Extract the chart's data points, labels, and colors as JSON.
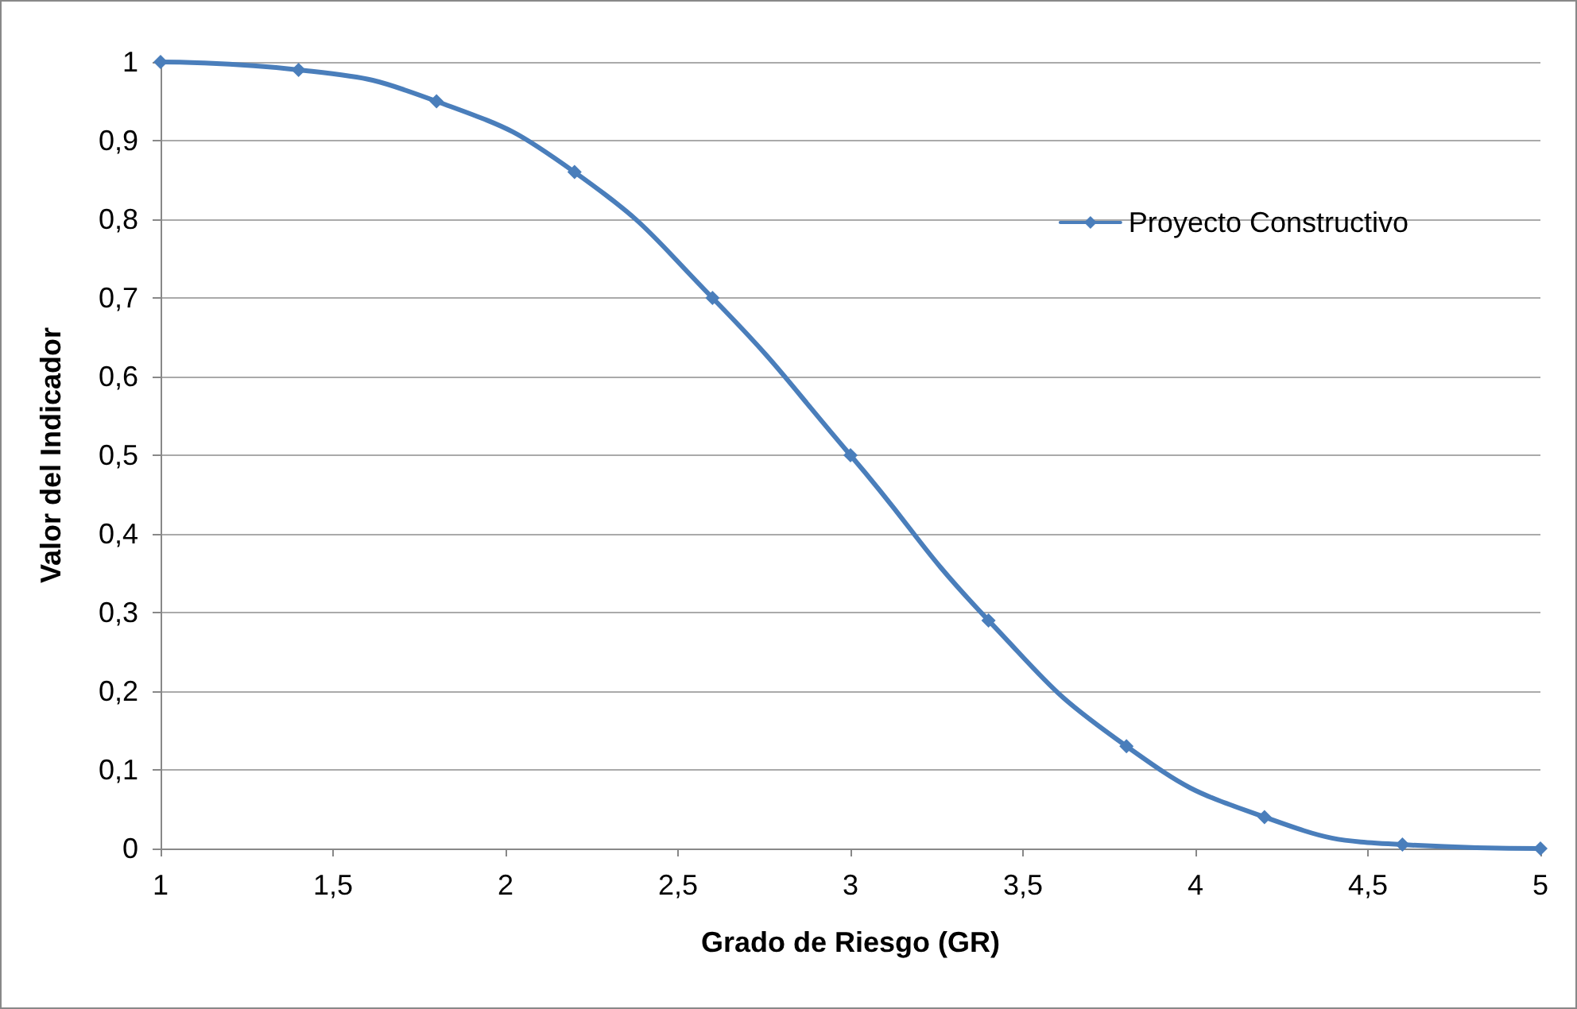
{
  "chart_data": {
    "type": "line",
    "xlabel": "Grado de Riesgo (GR)",
    "ylabel": "Valor del Indicador",
    "x": [
      1,
      1.4,
      1.8,
      2.2,
      2.6,
      3,
      3.4,
      3.8,
      4.2,
      4.6,
      5
    ],
    "series": [
      {
        "name": "Proyecto Constructivo",
        "color": "#4a7ebb",
        "values": [
          1,
          0.99,
          0.95,
          0.86,
          0.7,
          0.5,
          0.29,
          0.13,
          0.04,
          0.005,
          0
        ]
      }
    ],
    "xlim": [
      1,
      5
    ],
    "xticks": [
      1,
      {
        "value": 1.5,
        "label": "1,5"
      },
      2,
      {
        "value": 2.5,
        "label": "2,5"
      },
      3,
      {
        "value": 3.5,
        "label": "3,5"
      },
      4,
      {
        "value": 4.5,
        "label": "4,5"
      },
      5
    ],
    "ylim": [
      0,
      1
    ],
    "yticks": [
      0,
      {
        "value": 0.1,
        "label": "0,1"
      },
      {
        "value": 0.2,
        "label": "0,2"
      },
      {
        "value": 0.3,
        "label": "0,3"
      },
      {
        "value": 0.4,
        "label": "0,4"
      },
      {
        "value": 0.5,
        "label": "0,5"
      },
      {
        "value": 0.6,
        "label": "0,6"
      },
      {
        "value": 0.7,
        "label": "0,7"
      },
      {
        "value": 0.8,
        "label": "0,8"
      },
      {
        "value": 0.9,
        "label": "0,9"
      },
      1
    ],
    "grid": "y",
    "legend": "top right",
    "marker": "diamond",
    "line_style": "solid"
  }
}
